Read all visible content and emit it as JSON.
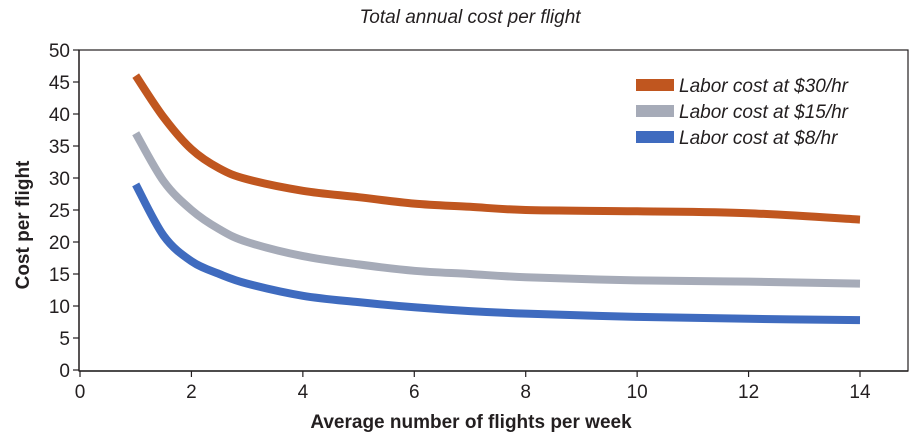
{
  "chart_data": {
    "type": "line",
    "title": "Total annual cost per flight",
    "xlabel": "Average number of flights per week",
    "ylabel": "Cost per flight",
    "xlim": [
      0,
      14
    ],
    "ylim": [
      0,
      50
    ],
    "xticks": [
      0,
      2,
      4,
      6,
      8,
      10,
      12,
      14
    ],
    "yticks": [
      0,
      5,
      10,
      15,
      20,
      25,
      30,
      35,
      40,
      45,
      50
    ],
    "grid": false,
    "legend_position": "top-right",
    "series": [
      {
        "name": "Labor cost at $30/hr",
        "color": "#c0561f",
        "x": [
          1,
          1.5,
          2,
          2.5,
          3,
          4,
          5,
          6,
          7,
          8,
          10,
          12,
          14
        ],
        "y": [
          46,
          39.5,
          34.5,
          31.5,
          29.8,
          28,
          27,
          26,
          25.5,
          25,
          24.8,
          24.5,
          23.5
        ]
      },
      {
        "name": "Labor cost at $15/hr",
        "color": "#a6abb8",
        "x": [
          1,
          1.5,
          2,
          2.5,
          3,
          4,
          5,
          6,
          7,
          8,
          10,
          12,
          14
        ],
        "y": [
          37,
          29.5,
          25,
          22,
          20,
          17.8,
          16.5,
          15.5,
          15,
          14.5,
          14,
          13.8,
          13.5
        ]
      },
      {
        "name": "Labor cost at $8/hr",
        "color": "#3f6bbf",
        "x": [
          1,
          1.5,
          2,
          2.5,
          3,
          4,
          5,
          6,
          7,
          8,
          10,
          12,
          14
        ],
        "y": [
          29,
          21,
          17,
          15,
          13.5,
          11.6,
          10.6,
          9.8,
          9.2,
          8.8,
          8.3,
          8,
          7.8
        ]
      }
    ]
  }
}
